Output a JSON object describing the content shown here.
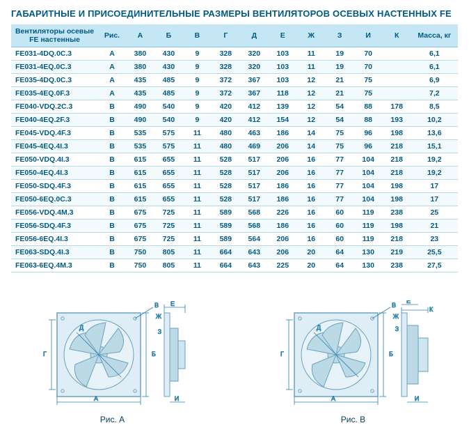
{
  "title": "ГАБАРИТНЫЕ И ПРИСОЕДИНИТЕЛЬНЫЕ РАЗМЕРЫ ВЕНТИЛЯТОРОВ ОСЕВЫХ НАСТЕННЫХ FE",
  "headers": {
    "model": "Вентиляторы осевые FE настенные",
    "fig": "Рис.",
    "A": "А",
    "B": "Б",
    "V": "В",
    "G": "Г",
    "D": "Д",
    "E": "Е",
    "Zh": "Ж",
    "Z": "З",
    "I": "И",
    "K": "К",
    "mass": "Масса, кг"
  },
  "rows": [
    {
      "m": "FE031-4DQ.0C.3",
      "f": "A",
      "A": "380",
      "B": "430",
      "V": "9",
      "G": "328",
      "D": "320",
      "E": "103",
      "Zh": "11",
      "Z": "19",
      "I": "70",
      "K": "",
      "mass": "6,1"
    },
    {
      "m": "FE031-4EQ.0C.3",
      "f": "A",
      "A": "380",
      "B": "430",
      "V": "9",
      "G": "328",
      "D": "320",
      "E": "103",
      "Zh": "11",
      "Z": "19",
      "I": "70",
      "K": "",
      "mass": "6,1"
    },
    {
      "m": "FE035-4DQ.0C.3",
      "f": "A",
      "A": "435",
      "B": "485",
      "V": "9",
      "G": "372",
      "D": "367",
      "E": "103",
      "Zh": "12",
      "Z": "21",
      "I": "75",
      "K": "",
      "mass": "6,9"
    },
    {
      "m": "FE035-4EQ.0F.3",
      "f": "A",
      "A": "435",
      "B": "485",
      "V": "9",
      "G": "372",
      "D": "367",
      "E": "118",
      "Zh": "12",
      "Z": "21",
      "I": "75",
      "K": "",
      "mass": "7,2"
    },
    {
      "m": "FE040-VDQ.2C.3",
      "f": "B",
      "A": "490",
      "B": "540",
      "V": "9",
      "G": "420",
      "D": "412",
      "E": "139",
      "Zh": "12",
      "Z": "54",
      "I": "88",
      "K": "178",
      "mass": "8,5"
    },
    {
      "m": "FE040-4EQ.2F.3",
      "f": "B",
      "A": "490",
      "B": "540",
      "V": "9",
      "G": "420",
      "D": "412",
      "E": "154",
      "Zh": "12",
      "Z": "54",
      "I": "88",
      "K": "193",
      "mass": "10,2"
    },
    {
      "m": "FE045-VDQ.4F.3",
      "f": "B",
      "A": "535",
      "B": "575",
      "V": "11",
      "G": "480",
      "D": "463",
      "E": "186",
      "Zh": "14",
      "Z": "75",
      "I": "96",
      "K": "198",
      "mass": "13,6"
    },
    {
      "m": "FE045-4EQ.4I.3",
      "f": "B",
      "A": "535",
      "B": "575",
      "V": "11",
      "G": "480",
      "D": "469",
      "E": "206",
      "Zh": "14",
      "Z": "75",
      "I": "96",
      "K": "218",
      "mass": "15,1"
    },
    {
      "m": "FE050-VDQ.4I.3",
      "f": "B",
      "A": "615",
      "B": "655",
      "V": "11",
      "G": "528",
      "D": "517",
      "E": "206",
      "Zh": "16",
      "Z": "77",
      "I": "104",
      "K": "218",
      "mass": "19,2"
    },
    {
      "m": "FE050-4EQ.4I.3",
      "f": "B",
      "A": "615",
      "B": "655",
      "V": "11",
      "G": "528",
      "D": "517",
      "E": "206",
      "Zh": "16",
      "Z": "77",
      "I": "104",
      "K": "218",
      "mass": "19,2"
    },
    {
      "m": "FE050-SDQ.4F.3",
      "f": "B",
      "A": "615",
      "B": "655",
      "V": "11",
      "G": "528",
      "D": "517",
      "E": "186",
      "Zh": "16",
      "Z": "77",
      "I": "104",
      "K": "198",
      "mass": "17"
    },
    {
      "m": "FE050-6EQ.0C.3",
      "f": "B",
      "A": "615",
      "B": "655",
      "V": "11",
      "G": "528",
      "D": "517",
      "E": "186",
      "Zh": "16",
      "Z": "77",
      "I": "104",
      "K": "198",
      "mass": "17"
    },
    {
      "m": "FE056-VDQ.4M.3",
      "f": "B",
      "A": "675",
      "B": "725",
      "V": "11",
      "G": "589",
      "D": "568",
      "E": "226",
      "Zh": "16",
      "Z": "60",
      "I": "119",
      "K": "238",
      "mass": "25"
    },
    {
      "m": "FE056-SDQ.4F.3",
      "f": "B",
      "A": "675",
      "B": "725",
      "V": "11",
      "G": "589",
      "D": "568",
      "E": "186",
      "Zh": "16",
      "Z": "60",
      "I": "119",
      "K": "198",
      "mass": "21"
    },
    {
      "m": "FE056-6EQ.4I.3",
      "f": "B",
      "A": "675",
      "B": "725",
      "V": "11",
      "G": "589",
      "D": "564",
      "E": "206",
      "Zh": "16",
      "Z": "60",
      "I": "119",
      "K": "218",
      "mass": "23"
    },
    {
      "m": "FE063-SDQ.4I.3",
      "f": "B",
      "A": "750",
      "B": "805",
      "V": "11",
      "G": "664",
      "D": "643",
      "E": "206",
      "Zh": "20",
      "Z": "64",
      "I": "130",
      "K": "219",
      "mass": "25,5"
    },
    {
      "m": "FE063-6EQ.4M.3",
      "f": "B",
      "A": "750",
      "B": "805",
      "V": "11",
      "G": "664",
      "D": "643",
      "E": "225",
      "Zh": "20",
      "Z": "64",
      "I": "130",
      "K": "238",
      "mass": "27,5"
    }
  ],
  "captions": {
    "a": "Рис. А",
    "b": "Рис. В"
  },
  "diagram_labels": {
    "A": "А",
    "B": "Б",
    "V": "В",
    "G": "Г",
    "D": "Д",
    "E": "Е",
    "Zh": "Ж",
    "Z": "З",
    "I": "И",
    "K": "К"
  },
  "colors": {
    "header_bg": "#c5e7f5",
    "text": "#005a84",
    "border": "#b9d9e8",
    "dim_line": "#2a7fb0",
    "fan_fill": "#bcd9e6",
    "fan_stroke": "#6aa2bf"
  }
}
